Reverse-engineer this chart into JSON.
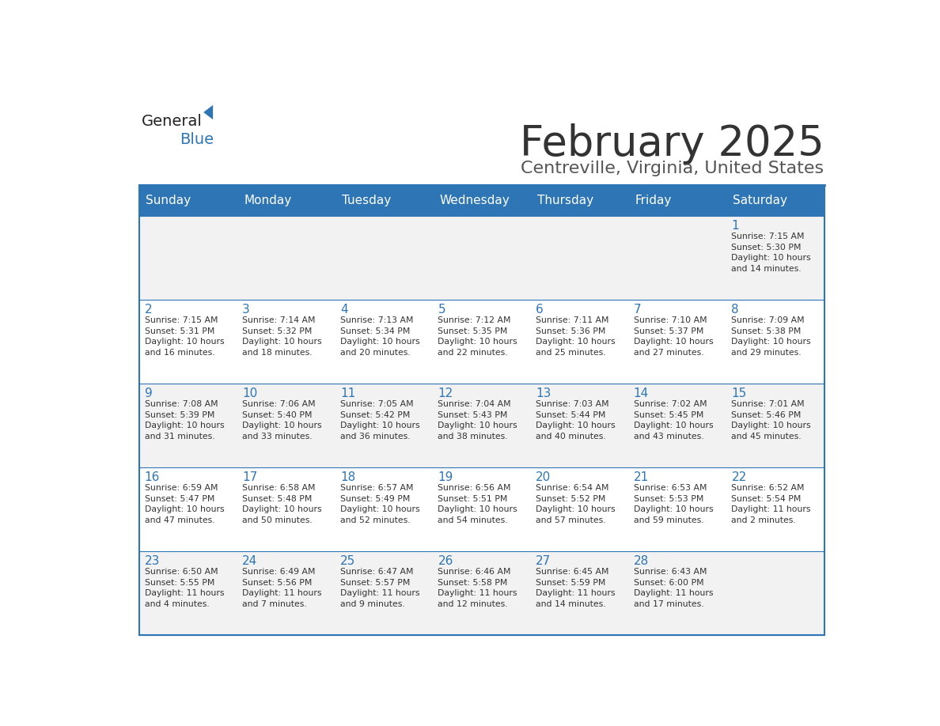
{
  "title": "February 2025",
  "subtitle": "Centreville, Virginia, United States",
  "header_bg": "#2E75B6",
  "header_text_color": "#FFFFFF",
  "day_headers": [
    "Sunday",
    "Monday",
    "Tuesday",
    "Wednesday",
    "Thursday",
    "Friday",
    "Saturday"
  ],
  "title_color": "#333333",
  "subtitle_color": "#555555",
  "cell_bg_odd": "#F2F2F2",
  "cell_bg_even": "#FFFFFF",
  "day_num_color": "#2E75B6",
  "info_color": "#333333",
  "border_color": "#2E75B6",
  "logo_general_color": "#222222",
  "logo_blue_color": "#2E75B6",
  "calendar_data": [
    [
      null,
      null,
      null,
      null,
      null,
      null,
      {
        "day": 1,
        "sunrise": "7:15 AM",
        "sunset": "5:30 PM",
        "daylight": "10 hours\nand 14 minutes."
      }
    ],
    [
      {
        "day": 2,
        "sunrise": "7:15 AM",
        "sunset": "5:31 PM",
        "daylight": "10 hours\nand 16 minutes."
      },
      {
        "day": 3,
        "sunrise": "7:14 AM",
        "sunset": "5:32 PM",
        "daylight": "10 hours\nand 18 minutes."
      },
      {
        "day": 4,
        "sunrise": "7:13 AM",
        "sunset": "5:34 PM",
        "daylight": "10 hours\nand 20 minutes."
      },
      {
        "day": 5,
        "sunrise": "7:12 AM",
        "sunset": "5:35 PM",
        "daylight": "10 hours\nand 22 minutes."
      },
      {
        "day": 6,
        "sunrise": "7:11 AM",
        "sunset": "5:36 PM",
        "daylight": "10 hours\nand 25 minutes."
      },
      {
        "day": 7,
        "sunrise": "7:10 AM",
        "sunset": "5:37 PM",
        "daylight": "10 hours\nand 27 minutes."
      },
      {
        "day": 8,
        "sunrise": "7:09 AM",
        "sunset": "5:38 PM",
        "daylight": "10 hours\nand 29 minutes."
      }
    ],
    [
      {
        "day": 9,
        "sunrise": "7:08 AM",
        "sunset": "5:39 PM",
        "daylight": "10 hours\nand 31 minutes."
      },
      {
        "day": 10,
        "sunrise": "7:06 AM",
        "sunset": "5:40 PM",
        "daylight": "10 hours\nand 33 minutes."
      },
      {
        "day": 11,
        "sunrise": "7:05 AM",
        "sunset": "5:42 PM",
        "daylight": "10 hours\nand 36 minutes."
      },
      {
        "day": 12,
        "sunrise": "7:04 AM",
        "sunset": "5:43 PM",
        "daylight": "10 hours\nand 38 minutes."
      },
      {
        "day": 13,
        "sunrise": "7:03 AM",
        "sunset": "5:44 PM",
        "daylight": "10 hours\nand 40 minutes."
      },
      {
        "day": 14,
        "sunrise": "7:02 AM",
        "sunset": "5:45 PM",
        "daylight": "10 hours\nand 43 minutes."
      },
      {
        "day": 15,
        "sunrise": "7:01 AM",
        "sunset": "5:46 PM",
        "daylight": "10 hours\nand 45 minutes."
      }
    ],
    [
      {
        "day": 16,
        "sunrise": "6:59 AM",
        "sunset": "5:47 PM",
        "daylight": "10 hours\nand 47 minutes."
      },
      {
        "day": 17,
        "sunrise": "6:58 AM",
        "sunset": "5:48 PM",
        "daylight": "10 hours\nand 50 minutes."
      },
      {
        "day": 18,
        "sunrise": "6:57 AM",
        "sunset": "5:49 PM",
        "daylight": "10 hours\nand 52 minutes."
      },
      {
        "day": 19,
        "sunrise": "6:56 AM",
        "sunset": "5:51 PM",
        "daylight": "10 hours\nand 54 minutes."
      },
      {
        "day": 20,
        "sunrise": "6:54 AM",
        "sunset": "5:52 PM",
        "daylight": "10 hours\nand 57 minutes."
      },
      {
        "day": 21,
        "sunrise": "6:53 AM",
        "sunset": "5:53 PM",
        "daylight": "10 hours\nand 59 minutes."
      },
      {
        "day": 22,
        "sunrise": "6:52 AM",
        "sunset": "5:54 PM",
        "daylight": "11 hours\nand 2 minutes."
      }
    ],
    [
      {
        "day": 23,
        "sunrise": "6:50 AM",
        "sunset": "5:55 PM",
        "daylight": "11 hours\nand 4 minutes."
      },
      {
        "day": 24,
        "sunrise": "6:49 AM",
        "sunset": "5:56 PM",
        "daylight": "11 hours\nand 7 minutes."
      },
      {
        "day": 25,
        "sunrise": "6:47 AM",
        "sunset": "5:57 PM",
        "daylight": "11 hours\nand 9 minutes."
      },
      {
        "day": 26,
        "sunrise": "6:46 AM",
        "sunset": "5:58 PM",
        "daylight": "11 hours\nand 12 minutes."
      },
      {
        "day": 27,
        "sunrise": "6:45 AM",
        "sunset": "5:59 PM",
        "daylight": "11 hours\nand 14 minutes."
      },
      {
        "day": 28,
        "sunrise": "6:43 AM",
        "sunset": "6:00 PM",
        "daylight": "11 hours\nand 17 minutes."
      },
      null
    ]
  ]
}
